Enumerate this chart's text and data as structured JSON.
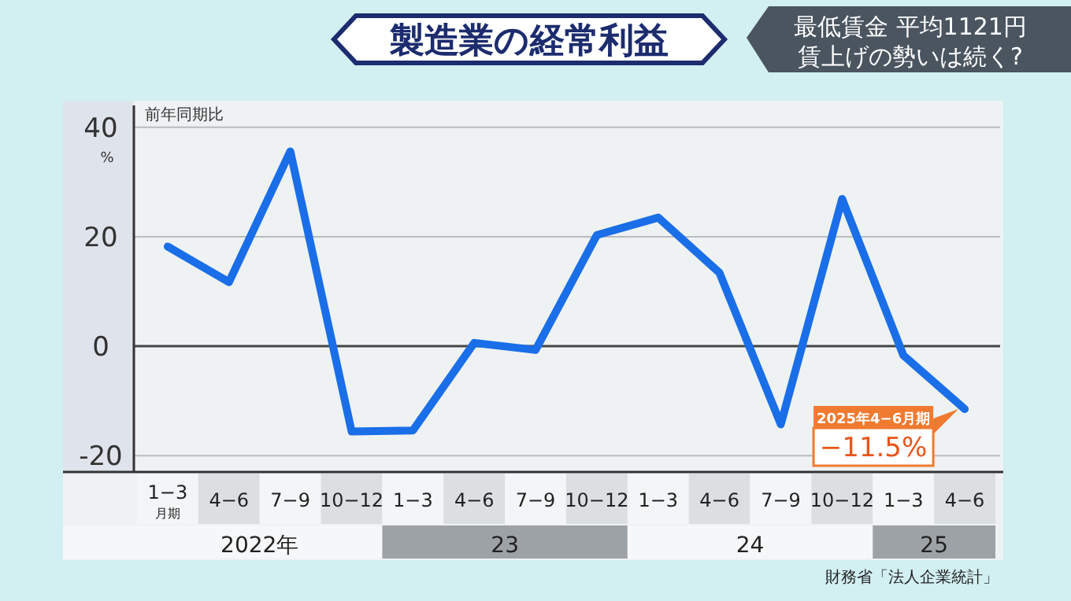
{
  "chart_data": {
    "type": "line",
    "title": "製造業の経常利益",
    "subtitle": "最低賃金 平均1121円",
    "ylabel": "前年同期比",
    "categories": [
      "1−3\n月期",
      "4−6",
      "7−9",
      "10−12",
      "1−3",
      "4−6",
      "7−9",
      "10−12",
      "1−3",
      "4−6",
      "7−9",
      "10−12",
      "1−3",
      "4−6"
    ],
    "series": [
      {
        "color": "#1a6ee8",
        "values": [
          18.2,
          11.7,
          35.6,
          -15.6,
          -15.4,
          0.6,
          -0.7,
          20.3,
          23.5,
          13.4,
          -14.3,
          26.9,
          -1.7,
          -11.5
        ],
        "value_labels": [
          null,
          null,
          null,
          null,
          null,
          null,
          null,
          null,
          null,
          null,
          null,
          null,
          null,
          "−11.5%"
        ]
      }
    ],
    "ylim": [
      -23,
      44
    ],
    "yticks": [
      -20,
      0,
      20,
      40
    ],
    "grid": "y",
    "marker": "none",
    "line_style": "solid",
    "annotations": [
      "2022年",
      "23",
      "24",
      "25",
      "%",
      "2025年4−6月期",
      "財務省「法人企業統計」",
      "賃上げの勢いは続く?"
    ]
  }
}
